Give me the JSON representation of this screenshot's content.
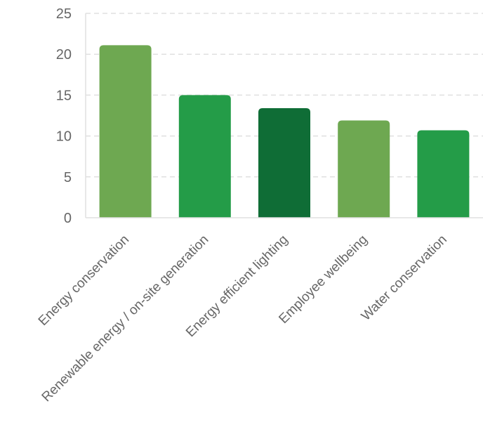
{
  "chart_data": {
    "type": "bar",
    "categories": [
      "Energy conservation",
      "Renewable energy / on-site generation",
      "Energy efficient lighting",
      "Employee wellbeing",
      "Water conservation"
    ],
    "values": [
      21.1,
      15.0,
      13.4,
      11.9,
      10.7
    ],
    "colors": [
      "#6ea851",
      "#249c48",
      "#0f6d36",
      "#6ea851",
      "#249c48"
    ],
    "title": "",
    "xlabel": "",
    "ylabel": "",
    "ylim": [
      0,
      25
    ],
    "yticks": [
      0,
      5,
      10,
      15,
      20,
      25
    ],
    "grid": true,
    "legend": "none"
  }
}
